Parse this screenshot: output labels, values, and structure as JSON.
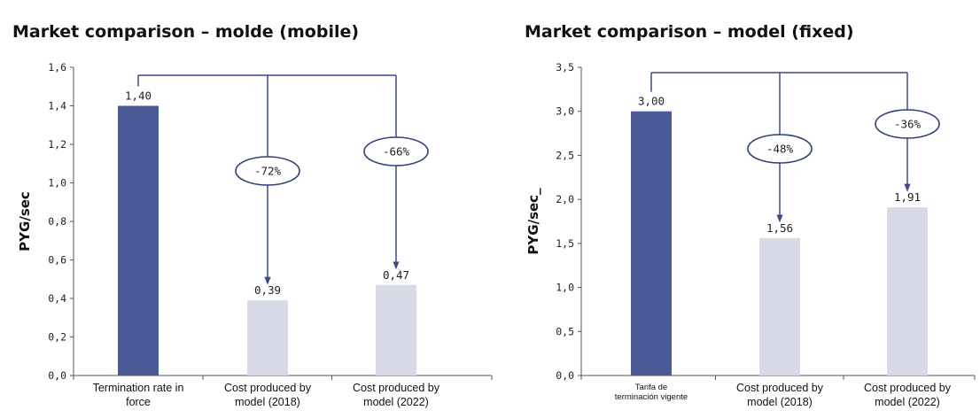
{
  "chart_data": [
    {
      "type": "bar",
      "title": "Market comparison – molde (mobile)",
      "ylabel": "PYG/sec",
      "ylim": [
        0,
        1.6
      ],
      "yticks": [
        "0,0",
        "0,2",
        "0,4",
        "0,6",
        "0,8",
        "1,0",
        "1,2",
        "1,4",
        "1,6"
      ],
      "categories": [
        [
          "Termination rate in",
          "force"
        ],
        [
          "Cost produced by",
          "model (2018)"
        ],
        [
          "Cost produced by",
          "model (2022)"
        ]
      ],
      "values": [
        1.4,
        0.39,
        0.47
      ],
      "value_labels": [
        "1,40",
        "0,39",
        "0,47"
      ],
      "bar_colors": [
        "#4a5a96",
        "#d9dae8",
        "#d9dae8"
      ],
      "annotations": [
        {
          "from": 0,
          "to": 1,
          "label": "-72%"
        },
        {
          "from": 0,
          "to": 2,
          "label": "-66%"
        }
      ]
    },
    {
      "type": "bar",
      "title": "Market comparison – model (fixed)",
      "ylabel": "PYG/sec_",
      "ylim": [
        0,
        3.5
      ],
      "yticks": [
        "0,0",
        "0,5",
        "1,0",
        "1,5",
        "2,0",
        "2,5",
        "3,0",
        "3,5"
      ],
      "categories": [
        [
          "Tarifa de",
          "terminación vigente"
        ],
        [
          "Cost produced by",
          "model (2018)"
        ],
        [
          "Cost produced by",
          "model (2022)"
        ]
      ],
      "values": [
        3.0,
        1.56,
        1.91
      ],
      "value_labels": [
        "3,00",
        "1,56",
        "1,91"
      ],
      "bar_colors": [
        "#4a5a96",
        "#d9dae8",
        "#d9dae8"
      ],
      "annotations": [
        {
          "from": 0,
          "to": 1,
          "label": "-48%"
        },
        {
          "from": 0,
          "to": 2,
          "label": "-36%"
        }
      ]
    }
  ]
}
